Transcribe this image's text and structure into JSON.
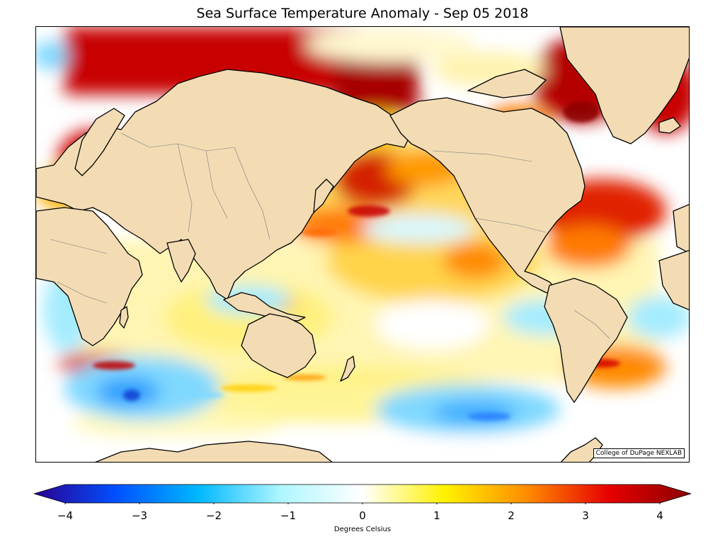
{
  "title": "Sea Surface Temperature Anomaly - Sep 05 2018",
  "credit": "College of DuPage NEXLAB",
  "colorbar": {
    "label": "Degrees Celsius",
    "min": -4,
    "max": 4,
    "ticks": [
      {
        "value": -4,
        "label": "−4"
      },
      {
        "value": -3,
        "label": "−3"
      },
      {
        "value": -2,
        "label": "−2"
      },
      {
        "value": -1,
        "label": "−1"
      },
      {
        "value": 0,
        "label": "0"
      },
      {
        "value": 1,
        "label": "1"
      },
      {
        "value": 2,
        "label": "2"
      },
      {
        "value": 3,
        "label": "3"
      },
      {
        "value": 4,
        "label": "4"
      }
    ],
    "colors": [
      "#2b0090",
      "#0050ff",
      "#00b8ff",
      "#aef6ff",
      "#ffffff",
      "#fff200",
      "#ff8c00",
      "#e60000",
      "#8b0000"
    ]
  },
  "colors": {
    "land": "#f3dcb4",
    "coastline": "#000000",
    "ocean_neutral": "#ffffff"
  }
}
